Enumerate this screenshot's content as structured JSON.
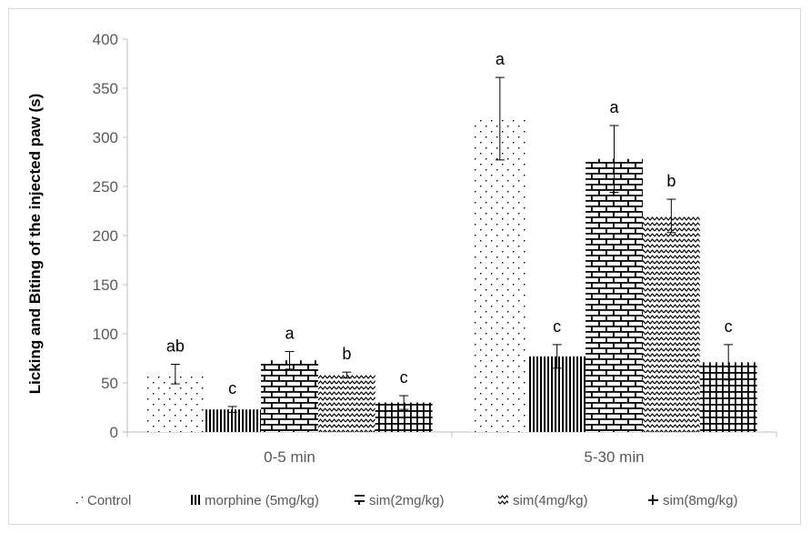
{
  "chart_data": {
    "type": "bar",
    "title": "",
    "xlabel": "",
    "ylabel": "Licking and Biting of the injected paw (s)",
    "ylim": [
      0,
      400
    ],
    "yticks": [
      0,
      50,
      100,
      150,
      200,
      250,
      300,
      350,
      400
    ],
    "grid": false,
    "legend_position": "bottom",
    "categories": [
      "0-5 min",
      "5-30 min"
    ],
    "series": [
      {
        "name": "Control",
        "pattern": "dots",
        "values": [
          59,
          319
        ],
        "errors": [
          10,
          42
        ],
        "labels": [
          "ab",
          "a"
        ]
      },
      {
        "name": "morphine (5mg/kg)",
        "pattern": "vertical-lines",
        "values": [
          23,
          77
        ],
        "errors": [
          3,
          12
        ],
        "labels": [
          "c",
          "c"
        ]
      },
      {
        "name": "sim(2mg/kg)",
        "pattern": "bricks",
        "values": [
          73,
          278
        ],
        "errors": [
          9,
          34
        ],
        "labels": [
          "a",
          "a"
        ]
      },
      {
        "name": "sim(4mg/kg)",
        "pattern": "zigzag",
        "values": [
          58,
          220
        ],
        "errors": [
          3,
          17
        ],
        "labels": [
          "b",
          "b"
        ]
      },
      {
        "name": "sim(8mg/kg)",
        "pattern": "grid",
        "values": [
          30,
          71
        ],
        "errors": [
          7,
          18
        ],
        "labels": [
          "c",
          "c"
        ]
      }
    ],
    "colors": {
      "bar_fill": "#000000",
      "axis": "#bfbfbf",
      "text": "#595959"
    }
  }
}
